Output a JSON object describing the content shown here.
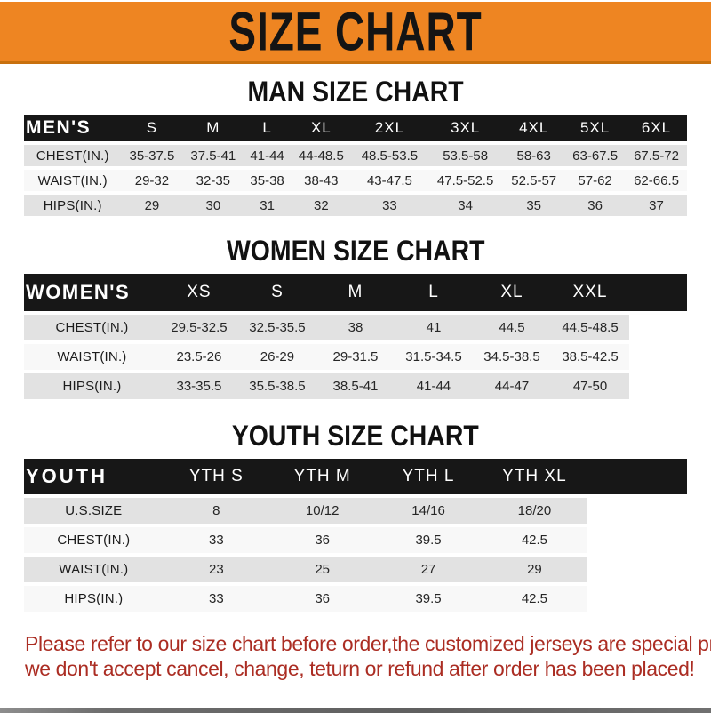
{
  "banner": {
    "title": "SIZE CHART"
  },
  "colors": {
    "banner_orange": "#ee8522",
    "banner_edge": "#c8700e",
    "table_header_black": "#171717",
    "row_gray": "#e2e2e2",
    "row_white": "#f8f8f8",
    "note_red": "#ab2d23"
  },
  "charts": [
    {
      "id": "men",
      "heading": "MAN SIZE CHART",
      "header_label": "MEN'S",
      "columns": [
        "S",
        "M",
        "L",
        "XL",
        "2XL",
        "3XL",
        "4XL",
        "5XL",
        "6XL"
      ],
      "rows": [
        {
          "label": "CHEST(IN.)",
          "values": [
            "35-37.5",
            "37.5-41",
            "41-44",
            "44-48.5",
            "48.5-53.5",
            "53.5-58",
            "58-63",
            "63-67.5",
            "67.5-72"
          ]
        },
        {
          "label": "WAIST(IN.)",
          "values": [
            "29-32",
            "32-35",
            "35-38",
            "38-43",
            "43-47.5",
            "47.5-52.5",
            "52.5-57",
            "57-62",
            "62-66.5"
          ]
        },
        {
          "label": "HIPS(IN.)",
          "values": [
            "29",
            "30",
            "31",
            "32",
            "33",
            "34",
            "35",
            "36",
            "37"
          ]
        }
      ]
    },
    {
      "id": "women",
      "heading": "WOMEN SIZE CHART",
      "header_label": "WOMEN'S",
      "columns": [
        "XS",
        "S",
        "M",
        "L",
        "XL",
        "XXL"
      ],
      "rows": [
        {
          "label": "CHEST(IN.)",
          "values": [
            "29.5-32.5",
            "32.5-35.5",
            "38",
            "41",
            "44.5",
            "44.5-48.5"
          ]
        },
        {
          "label": "WAIST(IN.)",
          "values": [
            "23.5-26",
            "26-29",
            "29-31.5",
            "31.5-34.5",
            "34.5-38.5",
            "38.5-42.5"
          ]
        },
        {
          "label": "HIPS(IN.)",
          "values": [
            "33-35.5",
            "35.5-38.5",
            "38.5-41",
            "41-44",
            "44-47",
            "47-50"
          ]
        }
      ]
    },
    {
      "id": "youth",
      "heading": "YOUTH SIZE CHART",
      "header_label": "YOUTH",
      "columns": [
        "YTH S",
        "YTH M",
        "YTH L",
        "YTH XL"
      ],
      "rows": [
        {
          "label": "U.S.SIZE",
          "values": [
            "8",
            "10/12",
            "14/16",
            "18/20"
          ]
        },
        {
          "label": "CHEST(IN.)",
          "values": [
            "33",
            "36",
            "39.5",
            "42.5"
          ]
        },
        {
          "label": "WAIST(IN.)",
          "values": [
            "23",
            "25",
            "27",
            "29"
          ]
        },
        {
          "label": "HIPS(IN.)",
          "values": [
            "33",
            "36",
            "39.5",
            "42.5"
          ]
        }
      ]
    }
  ],
  "footer": {
    "line1": "Please refer to our size chart before order,the customized jerseys are special products,",
    "line2": "we don't accept cancel, change, teturn or refund after order has been placed!"
  }
}
